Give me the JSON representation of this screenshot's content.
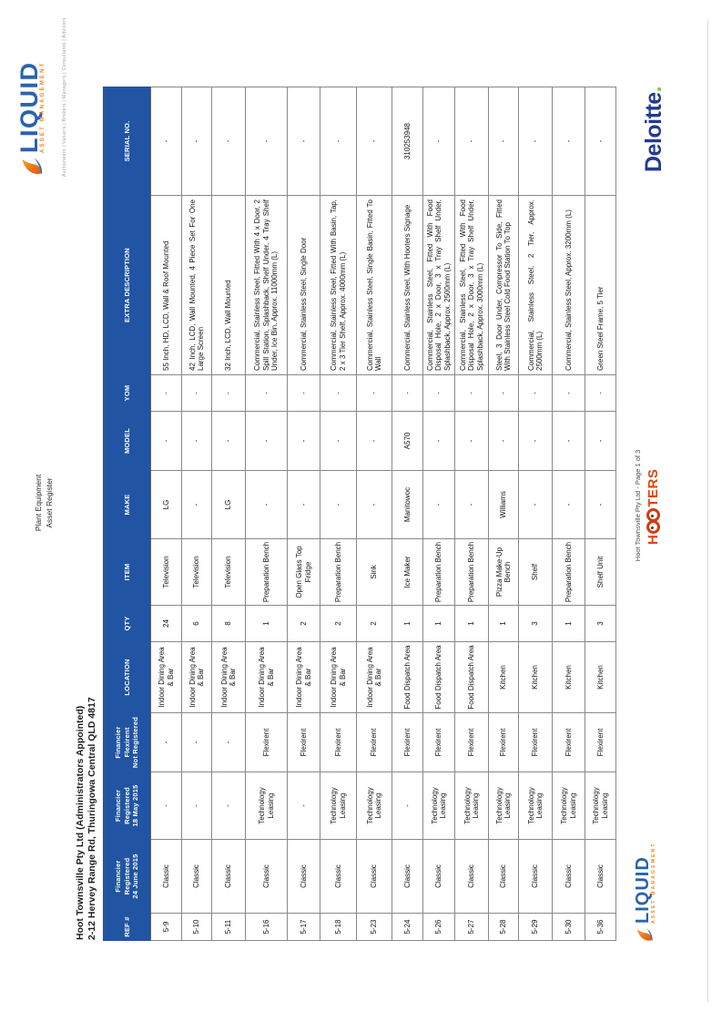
{
  "page": {
    "company_line1": "Hoot Townsville Pty Ltd (Administrators Appointed)",
    "company_line2": "2-12 Hervey Range Rd, Thuringowa Central QLD 4817",
    "doc_title_line1": "Plant Equipment",
    "doc_title_line2": "Asset Register",
    "footer_page_label": "Hoot Townsville Pty Ltd - Page 1 of 3"
  },
  "logos": {
    "liquid_wordmark": "LIQUID",
    "liquid_tagline": "ASSET MANAGEMENT",
    "liquid_services": "Auctioneers | Valuers | Brokers | Managers | Consultants | Advisors",
    "hooters_left": "H",
    "hooters_right": "TERS",
    "deloitte_word": "Deloitte",
    "deloitte_dot": "."
  },
  "colors": {
    "header_blue": "#2155a3",
    "liquid_blue": "#2a63ad",
    "liquid_orange": "#f58220",
    "hooters_red": "#e2420e",
    "deloitte_navy": "#223a8f",
    "deloitte_green": "#8bc53f"
  },
  "table": {
    "columns": [
      {
        "key": "ref",
        "lines": [
          "REF #"
        ],
        "width": 30
      },
      {
        "key": "financier_registered_24_june_2015",
        "lines": [
          "Financier Registered",
          "24 June 2015"
        ],
        "width": 81
      },
      {
        "key": "financier_registered_18_may_2015",
        "lines": [
          "Financier",
          "Registered",
          "18 May 2015"
        ],
        "width": 74
      },
      {
        "key": "financier_flexirent_not_registered",
        "lines": [
          "Financier",
          "Flexirent",
          "Not Registered"
        ],
        "width": 65
      },
      {
        "key": "location",
        "lines": [
          "LOCATION"
        ],
        "width": 78
      },
      {
        "key": "qty",
        "lines": [
          "QTY"
        ],
        "width": 40
      },
      {
        "key": "item",
        "lines": [
          "ITEM"
        ],
        "width": 73
      },
      {
        "key": "make",
        "lines": [
          "MAKE"
        ],
        "width": 75
      },
      {
        "key": "model",
        "lines": [
          "MODEL"
        ],
        "width": 65
      },
      {
        "key": "yom",
        "lines": [
          "YOM"
        ],
        "width": 40
      },
      {
        "key": "extra_description",
        "lines": [
          "EXTRA DESCRIPTION"
        ],
        "width": 197
      },
      {
        "key": "serial_no",
        "lines": [
          "SERIAL NO."
        ],
        "width": 119
      }
    ],
    "rows": [
      [
        "5-9",
        "Classic",
        "-",
        "-",
        "Indoor Dining Area & Bar",
        "24",
        "Television",
        "LG",
        "-",
        "-",
        "55 Inch, HD, LCD, Wall & Roof Mounted",
        "-"
      ],
      [
        "5-10",
        "Classic",
        "-",
        "-",
        "Indoor Dining Area & Bar",
        "6",
        "Television",
        "-",
        "-",
        "-",
        "42 Inch, LCD, Wall Mounted, 4 Piece Set For One Large Screen",
        "-"
      ],
      [
        "5-11",
        "Classic",
        "-",
        "-",
        "Indoor Dining Area & Bar",
        "8",
        "Television",
        "LG",
        "-",
        "-",
        "32 Inch, LCD, Wall Mounted",
        "-"
      ],
      [
        "5-16",
        "Classic",
        "Technology Leasing",
        "Flexirent",
        "Indoor Dining Area & Bar",
        "1",
        "Preparation Bench",
        "-",
        "-",
        "-",
        "Commercial, Stainless Steel, Fitted With 4 x Door, 2 Spill Station, Splashback, Shelf Under, 4 Tray Shelf Under, Ice Bin, Approx. 11000mm (L)",
        "-"
      ],
      [
        "5-17",
        "Classic",
        "-",
        "Flexirent",
        "Indoor Dining Area & Bar",
        "2",
        "Open Glass Top Fridge",
        "-",
        "-",
        "-",
        "Commercial, Stainless Steel, Single Door",
        "-"
      ],
      [
        "5-18",
        "Classic",
        "Technology Leasing",
        "Flexirent",
        "Indoor Dining Area & Bar",
        "2",
        "Preparation Bench",
        "-",
        "-",
        "-",
        "Commercial, Stainless Steel, Fitted With Basin, Tap, 2 x 3 Tier Shelf, Approx. 4000mm (L)",
        "-"
      ],
      [
        "5-23",
        "Classic",
        "Technology Leasing",
        "Flexirent",
        "Indoor Dining Area & Bar",
        "2",
        "Sink",
        "-",
        "-",
        "-",
        "Commercial, Stainless Steel, Single Basin, Fitted To Wall",
        "-"
      ],
      [
        "5-24",
        "Classic",
        "-",
        "Flexirent",
        "Food Dispatch Area",
        "1",
        "Ice Maker",
        "Manitowoc",
        "A570",
        "-",
        "Commercial, Stainless Steel, With Hooters Signage",
        "310253948"
      ],
      [
        "5-26",
        "Classic",
        "Technology Leasing",
        "Flexirent",
        "Food Dispatch Area",
        "1",
        "Preparation Bench",
        "-",
        "-",
        "-",
        "Commercial, Stainless Steel, Fitted With Food Disposal Hole, 2 x Door, 3 x Tray Shelf Under, Splashback, Approx. 2500mm (L)",
        "-"
      ],
      [
        "5-27",
        "Classic",
        "Technology Leasing",
        "Flexirent",
        "Food Dispatch Area",
        "1",
        "Preparation Bench",
        "-",
        "-",
        "-",
        "Commercial, Stainless Steel, Fitted With Food Disposal Hole, 2 x Door, 3 x Tray Shelf Under, Splashback, Approx. 3000mm (L)",
        "-"
      ],
      [
        "5-28",
        "Classic",
        "Technology Leasing",
        "Flexirent",
        "Kitchen",
        "1",
        "Pizza Make-Up Bench",
        "Williams",
        "-",
        "-",
        "Steel, 3 Door Under, Compressor To Side, Fitted With Stainless Steel Cold Food Station To Top",
        "-"
      ],
      [
        "5-29",
        "Classic",
        "Technology Leasing",
        "Flexirent",
        "Kitchen",
        "3",
        "Shelf",
        "-",
        "-",
        "-",
        "Commercial, Stainless Steel, 2 Tier, Approx. 2500mm (L)",
        "-"
      ],
      [
        "5-30",
        "Classic",
        "Technology Leasing",
        "Flexirent",
        "Kitchen",
        "1",
        "Preparation Bench",
        "-",
        "-",
        "-",
        "Commercial, Stainless Steel, Approx. 3200mm (L)",
        "-"
      ],
      [
        "5-36",
        "Classic",
        "Technology Leasing",
        "Flexirent",
        "Kitchen",
        "3",
        "Shelf Unit",
        "-",
        "-",
        "-",
        "Green Steel Frame, 5 Tier",
        "-"
      ]
    ]
  }
}
